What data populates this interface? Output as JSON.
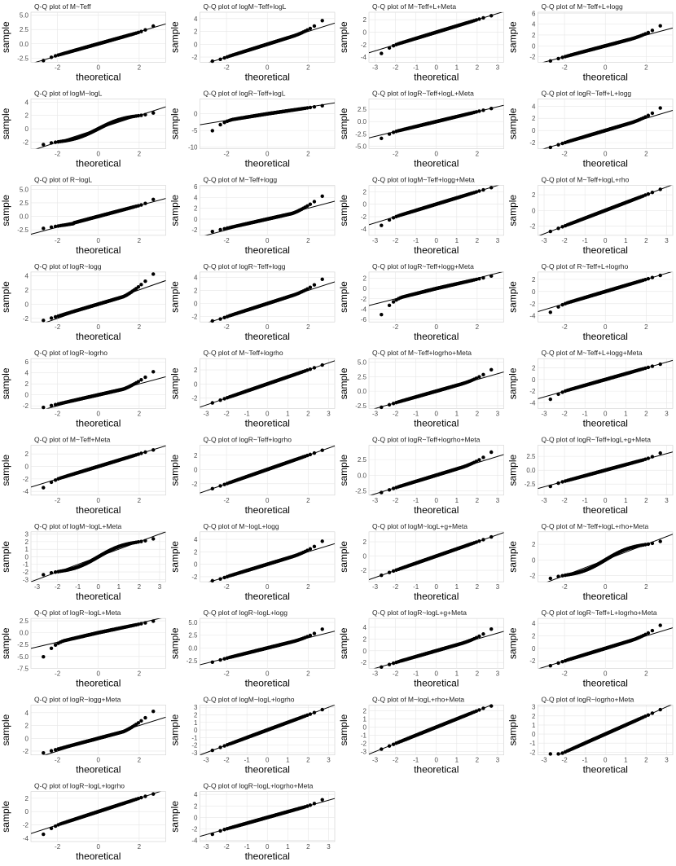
{
  "chart_data": [
    {
      "type": "scatter",
      "title": "Q-Q plot of  M~Teff",
      "xlabel": "theoretical",
      "ylabel": "sample",
      "xticks": [
        -2,
        0,
        2
      ],
      "yticks": [
        "-2.5",
        "0.0",
        "2.5",
        "5.0"
      ],
      "xlim": [
        -3.3,
        3.3
      ],
      "ylim": [
        -3.2,
        5.5
      ],
      "line": {
        "intercept": 0,
        "slope": 1.05
      },
      "shape": "left-mild-right-heavy"
    },
    {
      "type": "scatter",
      "title": "Q-Q plot of  logM~Teff+logL",
      "xlabel": "theoretical",
      "ylabel": "sample",
      "xticks": [
        -2,
        0,
        2
      ],
      "yticks": [
        "-2",
        "0",
        "2",
        "4"
      ],
      "xlim": [
        -3.3,
        3.3
      ],
      "ylim": [
        -2.8,
        5.0
      ],
      "line": {
        "intercept": 0,
        "slope": 1.0
      },
      "shape": "right-heavy"
    },
    {
      "type": "scatter",
      "title": "Q-Q plot of  M~Teff+L+Meta",
      "xlabel": "theoretical",
      "ylabel": "sample",
      "xticks": [
        -3,
        -2,
        -1,
        0,
        1,
        2,
        3
      ],
      "yticks": [
        "-4",
        "-2",
        "0",
        "2"
      ],
      "xlim": [
        -3.3,
        3.3
      ],
      "ylim": [
        -4.8,
        3.2
      ],
      "line": {
        "intercept": 0,
        "slope": 1.0
      },
      "shape": "left-heavy"
    },
    {
      "type": "scatter",
      "title": "Q-Q plot of  M~Teff+L+logg",
      "xlabel": "theoretical",
      "ylabel": "sample",
      "xticks": [
        -2,
        0,
        2
      ],
      "yticks": [
        "-2",
        "0",
        "2",
        "4",
        "6"
      ],
      "xlim": [
        -3.3,
        3.3
      ],
      "ylim": [
        -3.0,
        6.2
      ],
      "line": {
        "intercept": 0,
        "slope": 1.0
      },
      "shape": "right-heavy"
    },
    {
      "type": "scatter",
      "title": "Q-Q plot of  logM~logL",
      "xlabel": "theoretical",
      "ylabel": "sample",
      "xticks": [
        -2,
        0,
        2
      ],
      "yticks": [
        "-2",
        "0",
        "2",
        "4"
      ],
      "xlim": [
        -3.3,
        3.3
      ],
      "ylim": [
        -3.0,
        4.5
      ],
      "line": {
        "intercept": 0,
        "slope": 1.0
      },
      "shape": "s-curve"
    },
    {
      "type": "scatter",
      "title": "Q-Q plot of  logR~Teff+logL",
      "xlabel": "theoretical",
      "ylabel": "sample",
      "xticks": [
        -2,
        0,
        2
      ],
      "yticks": [
        "-10",
        "-5",
        "0"
      ],
      "xlim": [
        -3.3,
        3.3
      ],
      "ylim": [
        -10.5,
        4.5
      ],
      "line": {
        "intercept": 0,
        "slope": 1.0
      },
      "shape": "left-extreme"
    },
    {
      "type": "scatter",
      "title": "Q-Q plot of  logR~Teff+logL+Meta",
      "xlabel": "theoretical",
      "ylabel": "sample",
      "xticks": [
        -2,
        0,
        2
      ],
      "yticks": [
        "-5.0",
        "-2.5",
        "0.0",
        "2.5"
      ],
      "xlim": [
        -3.3,
        3.3
      ],
      "ylim": [
        -5.5,
        4.6
      ],
      "line": {
        "intercept": 0,
        "slope": 1.0
      },
      "shape": "left-heavy"
    },
    {
      "type": "scatter",
      "title": "Q-Q plot of  logR~Teff+L+logg",
      "xlabel": "theoretical",
      "ylabel": "sample",
      "xticks": [
        -2,
        0,
        2
      ],
      "yticks": [
        "-2",
        "0",
        "2",
        "4"
      ],
      "xlim": [
        -3.3,
        3.3
      ],
      "ylim": [
        -3.0,
        5.2
      ],
      "line": {
        "intercept": 0,
        "slope": 1.0
      },
      "shape": "right-heavy"
    },
    {
      "type": "scatter",
      "title": "Q-Q plot of  R~logL",
      "xlabel": "theoretical",
      "ylabel": "sample",
      "xticks": [
        -2,
        0,
        2
      ],
      "yticks": [
        "-2.5",
        "0.0",
        "2.5",
        "5.0"
      ],
      "xlim": [
        -3.3,
        3.3
      ],
      "ylim": [
        -3.5,
        5.7
      ],
      "line": {
        "intercept": 0,
        "slope": 1.0
      },
      "shape": "left-bump-right-heavy"
    },
    {
      "type": "scatter",
      "title": "Q-Q plot of  M~Teff+logg",
      "xlabel": "theoretical",
      "ylabel": "sample",
      "xticks": [
        -2,
        0,
        2
      ],
      "yticks": [
        "-2",
        "0",
        "2",
        "4",
        "6"
      ],
      "xlim": [
        -3.3,
        3.3
      ],
      "ylim": [
        -3.0,
        6.2
      ],
      "line": {
        "intercept": 0,
        "slope": 1.0
      },
      "shape": "right-jump"
    },
    {
      "type": "scatter",
      "title": "Q-Q plot of  logM~Teff+logg+Meta",
      "xlabel": "theoretical",
      "ylabel": "sample",
      "xticks": [
        -3,
        -2,
        -1,
        0,
        1,
        2,
        3
      ],
      "yticks": [
        "-4",
        "-2",
        "0",
        "2"
      ],
      "xlim": [
        -3.3,
        3.3
      ],
      "ylim": [
        -5.0,
        3.0
      ],
      "line": {
        "intercept": 0,
        "slope": 1.0
      },
      "shape": "left-heavy"
    },
    {
      "type": "scatter",
      "title": "Q-Q plot of  M~Teff+logL+rho",
      "xlabel": "theoretical",
      "ylabel": "sample",
      "xticks": [
        -3,
        -2,
        -1,
        0,
        1,
        2,
        3
      ],
      "yticks": [
        "-2",
        "0",
        "2"
      ],
      "xlim": [
        -3.3,
        3.3
      ],
      "ylim": [
        -3.2,
        3.2
      ],
      "line": {
        "intercept": 0,
        "slope": 1.0
      },
      "shape": "normal"
    },
    {
      "type": "scatter",
      "title": "Q-Q plot of  logR~logg",
      "xlabel": "theoretical",
      "ylabel": "sample",
      "xticks": [
        -2,
        0,
        2
      ],
      "yticks": [
        "-2",
        "0",
        "2",
        "4"
      ],
      "xlim": [
        -3.3,
        3.3
      ],
      "ylim": [
        -2.5,
        4.5
      ],
      "line": {
        "intercept": 0,
        "slope": 1.0
      },
      "shape": "right-jump"
    },
    {
      "type": "scatter",
      "title": "Q-Q plot of  logR~Teff+logg",
      "xlabel": "theoretical",
      "ylabel": "sample",
      "xticks": [
        -2,
        0,
        2
      ],
      "yticks": [
        "-2",
        "0",
        "2",
        "4"
      ],
      "xlim": [
        -3.3,
        3.3
      ],
      "ylim": [
        -2.8,
        4.8
      ],
      "line": {
        "intercept": 0,
        "slope": 1.0
      },
      "shape": "right-heavy"
    },
    {
      "type": "scatter",
      "title": "Q-Q plot of  logR~Teff+logg+Meta",
      "xlabel": "theoretical",
      "ylabel": "sample",
      "xticks": [
        -2,
        0,
        2
      ],
      "yticks": [
        "-6",
        "-4",
        "-2",
        "0",
        "2"
      ],
      "xlim": [
        -3.3,
        3.3
      ],
      "ylim": [
        -6.5,
        3.2
      ],
      "line": {
        "intercept": 0,
        "slope": 1.0
      },
      "shape": "left-extreme"
    },
    {
      "type": "scatter",
      "title": "Q-Q plot of  R~Teff+L+logrho",
      "xlabel": "theoretical",
      "ylabel": "sample",
      "xticks": [
        -2,
        0,
        2
      ],
      "yticks": [
        "-4",
        "-2",
        "0",
        "2"
      ],
      "xlim": [
        -3.3,
        3.3
      ],
      "ylim": [
        -5.0,
        3.2
      ],
      "line": {
        "intercept": 0,
        "slope": 1.0
      },
      "shape": "left-heavy"
    },
    {
      "type": "scatter",
      "title": "Q-Q plot of  logR~logrho",
      "xlabel": "theoretical",
      "ylabel": "sample",
      "xticks": [
        -2,
        0,
        2
      ],
      "yticks": [
        "-2",
        "0",
        "2",
        "4",
        "6"
      ],
      "xlim": [
        -3.3,
        3.3
      ],
      "ylim": [
        -2.5,
        6.6
      ],
      "line": {
        "intercept": 0,
        "slope": 1.0
      },
      "shape": "right-jump"
    },
    {
      "type": "scatter",
      "title": "Q-Q plot of  M~Teff+logrho",
      "xlabel": "theoretical",
      "ylabel": "sample",
      "xticks": [
        -3,
        -2,
        -1,
        0,
        1,
        2,
        3
      ],
      "yticks": [
        "-2",
        "0",
        "2"
      ],
      "xlim": [
        -3.3,
        3.3
      ],
      "ylim": [
        -3.5,
        3.6
      ],
      "line": {
        "intercept": 0,
        "slope": 1.0
      },
      "shape": "normal"
    },
    {
      "type": "scatter",
      "title": "Q-Q plot of  M~Teff+logrho+Meta",
      "xlabel": "theoretical",
      "ylabel": "sample",
      "xticks": [
        -3,
        -2,
        -1,
        0,
        1,
        2,
        3
      ],
      "yticks": [
        "-2.5",
        "0.0",
        "2.5",
        "5.0"
      ],
      "xlim": [
        -3.3,
        3.3
      ],
      "ylim": [
        -3.0,
        5.6
      ],
      "line": {
        "intercept": 0,
        "slope": 1.0
      },
      "shape": "right-heavy"
    },
    {
      "type": "scatter",
      "title": "Q-Q plot of  M~Teff+L+logg+Meta",
      "xlabel": "theoretical",
      "ylabel": "sample",
      "xticks": [
        -3,
        -2,
        -1,
        0,
        1,
        2,
        3
      ],
      "yticks": [
        "-4",
        "-2",
        "0",
        "2"
      ],
      "xlim": [
        -3.3,
        3.3
      ],
      "ylim": [
        -5.0,
        3.6
      ],
      "line": {
        "intercept": 0,
        "slope": 1.0
      },
      "shape": "left-heavy"
    },
    {
      "type": "scatter",
      "title": "Q-Q plot of  M~Teff+Meta",
      "xlabel": "theoretical",
      "ylabel": "sample",
      "xticks": [
        -2,
        0,
        2
      ],
      "yticks": [
        "-4",
        "-2",
        "0",
        "2"
      ],
      "xlim": [
        -3.3,
        3.3
      ],
      "ylim": [
        -4.6,
        3.4
      ],
      "line": {
        "intercept": 0,
        "slope": 1.0
      },
      "shape": "left-heavy"
    },
    {
      "type": "scatter",
      "title": "Q-Q plot of  logR~Teff+logrho",
      "xlabel": "theoretical",
      "ylabel": "sample",
      "xticks": [
        -2,
        0,
        2
      ],
      "yticks": [
        "-2",
        "0",
        "2"
      ],
      "xlim": [
        -3.3,
        3.3
      ],
      "ylim": [
        -3.6,
        3.4
      ],
      "line": {
        "intercept": 0,
        "slope": 1.0
      },
      "shape": "normal"
    },
    {
      "type": "scatter",
      "title": "Q-Q plot of  logR~Teff+logrho+Meta",
      "xlabel": "theoretical",
      "ylabel": "sample",
      "xticks": [
        -3,
        -2,
        -1,
        0,
        1,
        2,
        3
      ],
      "yticks": [
        "-2.5",
        "0.0",
        "2.5"
      ],
      "xlim": [
        -3.3,
        3.3
      ],
      "ylim": [
        -3.2,
        4.8
      ],
      "line": {
        "intercept": 0,
        "slope": 1.0
      },
      "shape": "right-heavy"
    },
    {
      "type": "scatter",
      "title": "Q-Q plot of  logR~Teff+logL+g+Meta",
      "xlabel": "theoretical",
      "ylabel": "sample",
      "xticks": [
        -3,
        -2,
        -1,
        0,
        1,
        2,
        3
      ],
      "yticks": [
        "-2.5",
        "0.0",
        "2.5"
      ],
      "xlim": [
        -3.3,
        3.3
      ],
      "ylim": [
        -4.5,
        4.5
      ],
      "line": {
        "intercept": 0,
        "slope": 1.0
      },
      "shape": "left-mild-right-heavy"
    },
    {
      "type": "scatter",
      "title": "Q-Q plot of  logM~logL+Meta",
      "xlabel": "theoretical",
      "ylabel": "sample",
      "xticks": [
        -3,
        -2,
        -1,
        0,
        1,
        2,
        3
      ],
      "yticks": [
        "-3",
        "-2",
        "-1",
        "0",
        "1",
        "2",
        "3"
      ],
      "xlim": [
        -3.3,
        3.3
      ],
      "ylim": [
        -3.3,
        3.3
      ],
      "line": {
        "intercept": 0,
        "slope": 1.0
      },
      "shape": "s-curve"
    },
    {
      "type": "scatter",
      "title": "Q-Q plot of  M~logL+logg",
      "xlabel": "theoretical",
      "ylabel": "sample",
      "xticks": [
        -2,
        0,
        2
      ],
      "yticks": [
        "-2",
        "0",
        "2",
        "4"
      ],
      "xlim": [
        -3.3,
        3.3
      ],
      "ylim": [
        -2.8,
        5.2
      ],
      "line": {
        "intercept": 0,
        "slope": 1.0
      },
      "shape": "right-heavy"
    },
    {
      "type": "scatter",
      "title": "Q-Q plot of  logM~logL+g+Meta",
      "xlabel": "theoretical",
      "ylabel": "sample",
      "xticks": [
        -3,
        -2,
        -1,
        0,
        1,
        2,
        3
      ],
      "yticks": [
        "-2",
        "0",
        "2"
      ],
      "xlim": [
        -3.3,
        3.3
      ],
      "ylim": [
        -3.6,
        3.4
      ],
      "line": {
        "intercept": 0,
        "slope": 1.0
      },
      "shape": "normal"
    },
    {
      "type": "scatter",
      "title": "Q-Q plot of  M~Teff+logL+rho+Meta",
      "xlabel": "theoretical",
      "ylabel": "sample",
      "xticks": [
        -2,
        0,
        2
      ],
      "yticks": [
        "-2",
        "0",
        "2"
      ],
      "xlim": [
        -3.3,
        3.3
      ],
      "ylim": [
        -2.8,
        3.6
      ],
      "line": {
        "intercept": 0,
        "slope": 1.0
      },
      "shape": "s-curve"
    },
    {
      "type": "scatter",
      "title": "Q-Q plot of  logR~logL+Meta",
      "xlabel": "theoretical",
      "ylabel": "sample",
      "xticks": [
        -2,
        0,
        2
      ],
      "yticks": [
        "-7.5",
        "-5.0",
        "-2.5",
        "0.0",
        "2.5"
      ],
      "xlim": [
        -3.3,
        3.3
      ],
      "ylim": [
        -7.5,
        3.0
      ],
      "line": {
        "intercept": 0,
        "slope": 1.0
      },
      "shape": "left-extreme"
    },
    {
      "type": "scatter",
      "title": "Q-Q plot of  logR~logL+logg",
      "xlabel": "theoretical",
      "ylabel": "sample",
      "xticks": [
        -2,
        0,
        2
      ],
      "yticks": [
        "-2.5",
        "0.0",
        "2.5",
        "5.0"
      ],
      "xlim": [
        -3.3,
        3.3
      ],
      "ylim": [
        -4.0,
        5.8
      ],
      "line": {
        "intercept": 0,
        "slope": 1.0
      },
      "shape": "right-heavy"
    },
    {
      "type": "scatter",
      "title": "Q-Q plot of  logR~logL+g+Meta",
      "xlabel": "theoretical",
      "ylabel": "sample",
      "xticks": [
        -3,
        -2,
        -1,
        0,
        1,
        2,
        3
      ],
      "yticks": [
        "-2",
        "0",
        "2",
        "4"
      ],
      "xlim": [
        -3.3,
        3.3
      ],
      "ylim": [
        -3.0,
        5.5
      ],
      "line": {
        "intercept": 0,
        "slope": 1.0
      },
      "shape": "right-heavy"
    },
    {
      "type": "scatter",
      "title": "Q-Q plot of  logR~Teff+L+logrho+Meta",
      "xlabel": "theoretical",
      "ylabel": "sample",
      "xticks": [
        -2,
        0,
        2
      ],
      "yticks": [
        "-2",
        "0",
        "2",
        "4"
      ],
      "xlim": [
        -3.3,
        3.3
      ],
      "ylim": [
        -3.2,
        4.8
      ],
      "line": {
        "intercept": 0,
        "slope": 1.0
      },
      "shape": "right-heavy"
    },
    {
      "type": "scatter",
      "title": "Q-Q plot of  logR~logg+Meta",
      "xlabel": "theoretical",
      "ylabel": "sample",
      "xticks": [
        -2,
        0,
        2
      ],
      "yticks": [
        "-2",
        "0",
        "2",
        "4"
      ],
      "xlim": [
        -3.3,
        3.3
      ],
      "ylim": [
        -2.6,
        5.2
      ],
      "line": {
        "intercept": 0,
        "slope": 1.0
      },
      "shape": "right-jump"
    },
    {
      "type": "scatter",
      "title": "Q-Q plot of  logM~logL+logrho",
      "xlabel": "theoretical",
      "ylabel": "sample",
      "xticks": [
        -3,
        -2,
        -1,
        0,
        1,
        2,
        3
      ],
      "yticks": [
        "-3",
        "-2",
        "-1",
        "0",
        "1",
        "2",
        "3"
      ],
      "xlim": [
        -3.3,
        3.3
      ],
      "ylim": [
        -3.3,
        3.3
      ],
      "line": {
        "intercept": 0,
        "slope": 1.0
      },
      "shape": "normal"
    },
    {
      "type": "scatter",
      "title": "Q-Q plot of  M~logL+rho+Meta",
      "xlabel": "theoretical",
      "ylabel": "sample",
      "xticks": [
        -3,
        -2,
        -1,
        0,
        1,
        2,
        3
      ],
      "yticks": [
        "-3",
        "-2",
        "-1",
        "0",
        "1",
        "2"
      ],
      "xlim": [
        -3.3,
        3.3
      ],
      "ylim": [
        -3.4,
        2.7
      ],
      "line": {
        "intercept": 0,
        "slope": 1.0
      },
      "shape": "normal"
    },
    {
      "type": "scatter",
      "title": "Q-Q plot of  logR~logrho+Meta",
      "xlabel": "theoretical",
      "ylabel": "sample",
      "xticks": [
        -3,
        -2,
        -1,
        0,
        1,
        2,
        3
      ],
      "yticks": [
        "-2",
        "-1",
        "0",
        "1",
        "2",
        "3"
      ],
      "xlim": [
        -3.3,
        3.3
      ],
      "ylim": [
        -2.3,
        3.2
      ],
      "line": {
        "intercept": 0,
        "slope": 1.0
      },
      "shape": "normal"
    },
    {
      "type": "scatter",
      "title": "Q-Q plot of  logR~logL+logrho",
      "xlabel": "theoretical",
      "ylabel": "sample",
      "xticks": [
        -2,
        0,
        2
      ],
      "yticks": [
        "-4",
        "-2",
        "0",
        "2"
      ],
      "xlim": [
        -3.3,
        3.3
      ],
      "ylim": [
        -4.5,
        3.0
      ],
      "line": {
        "intercept": 0,
        "slope": 1.0
      },
      "shape": "left-heavy"
    },
    {
      "type": "scatter",
      "title": "Q-Q plot of  logR~logL+logrho+Meta",
      "xlabel": "theoretical",
      "ylabel": "sample",
      "xticks": [
        -3,
        -2,
        -1,
        0,
        1,
        2,
        3
      ],
      "yticks": [
        "-4",
        "-2",
        "0",
        "2",
        "4"
      ],
      "xlim": [
        -3.3,
        3.3
      ],
      "ylim": [
        -4.2,
        4.5
      ],
      "line": {
        "intercept": 0,
        "slope": 1.0
      },
      "shape": "left-mild-right-heavy"
    }
  ]
}
